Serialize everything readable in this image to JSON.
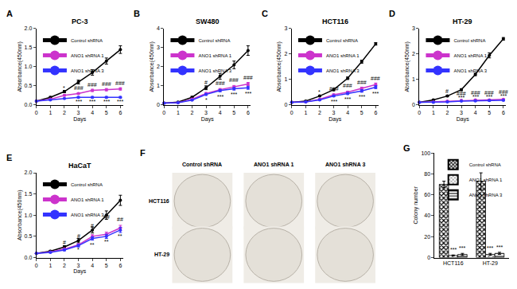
{
  "chart_data": [
    {
      "type": "line",
      "panel": "A",
      "title": "PC-3",
      "x_label": "Days",
      "y_label": "Absorbance(450nm)",
      "x": [
        0,
        1,
        2,
        3,
        4,
        5,
        6
      ],
      "xlim": [
        0,
        6.2
      ],
      "xticks": [
        0,
        1,
        2,
        3,
        4,
        5,
        6
      ],
      "ylim": [
        0,
        2
      ],
      "yticks": [
        {
          "value": 0,
          "label": "0.0"
        },
        0.5,
        {
          "value": 1,
          "label": "1.0"
        },
        1.5,
        {
          "value": 2,
          "label": "2.0"
        }
      ],
      "grid": false,
      "legend": "upper left",
      "marker": "circle",
      "series": [
        {
          "name": "Control shRNA",
          "color": "#000000",
          "values": [
            0.1,
            0.2,
            0.35,
            0.6,
            0.85,
            1.15,
            1.45
          ],
          "errors": [
            0.01,
            0.02,
            0.03,
            0.05,
            0.07,
            0.08,
            0.1
          ]
        },
        {
          "name": "ANO1 shRNA 1",
          "color": "#cc33cc",
          "values": [
            0.1,
            0.15,
            0.25,
            0.3,
            0.38,
            0.4,
            0.42
          ],
          "errors": [
            0.01,
            0.01,
            0.02,
            0.02,
            0.03,
            0.03,
            0.03
          ]
        },
        {
          "name": "ANO1 shRNA 3",
          "color": "#3333ff",
          "values": [
            0.1,
            0.13,
            0.17,
            0.2,
            0.2,
            0.2,
            0.2
          ],
          "errors": [
            0.01,
            0.01,
            0.01,
            0.02,
            0.02,
            0.02,
            0.02
          ]
        }
      ],
      "annotations": [
        {
          "x": 2,
          "y": 0.45,
          "text": "*"
        },
        {
          "x": 3,
          "y": 0.45,
          "text": "###"
        },
        {
          "x": 4,
          "y": 0.52,
          "text": "###"
        },
        {
          "x": 5,
          "y": 0.55,
          "text": "###"
        },
        {
          "x": 6,
          "y": 0.57,
          "text": "###"
        },
        {
          "x": 3,
          "y": 0.08,
          "text": "***"
        },
        {
          "x": 4,
          "y": 0.08,
          "text": "***"
        },
        {
          "x": 5,
          "y": 0.08,
          "text": "***"
        },
        {
          "x": 6,
          "y": 0.08,
          "text": "***"
        }
      ]
    },
    {
      "type": "line",
      "panel": "B",
      "title": "SW480",
      "x_label": "Days",
      "y_label": "Absorbance(450nm)",
      "x": [
        0,
        1,
        2,
        3,
        4,
        5,
        6
      ],
      "xlim": [
        0,
        6.2
      ],
      "xticks": [
        0,
        1,
        2,
        3,
        4,
        5,
        6
      ],
      "ylim": [
        0,
        4
      ],
      "yticks": [
        0,
        1,
        2,
        3,
        4
      ],
      "grid": false,
      "legend": "upper left",
      "marker": "circle",
      "series": [
        {
          "name": "Control shRNA",
          "color": "#000000",
          "values": [
            0.1,
            0.15,
            0.4,
            0.9,
            1.5,
            2.1,
            2.85
          ],
          "errors": [
            0.02,
            0.03,
            0.05,
            0.1,
            0.15,
            0.2,
            0.25
          ]
        },
        {
          "name": "ANO1 shRNA 1",
          "color": "#cc33cc",
          "values": [
            0.1,
            0.12,
            0.3,
            0.6,
            0.8,
            0.95,
            1.1
          ],
          "errors": [
            0.02,
            0.02,
            0.03,
            0.05,
            0.06,
            0.07,
            0.08
          ]
        },
        {
          "name": "ANO1 shRNA 3",
          "color": "#3333ff",
          "values": [
            0.1,
            0.12,
            0.25,
            0.55,
            0.75,
            0.85,
            0.9
          ],
          "errors": [
            0.02,
            0.02,
            0.03,
            0.05,
            0.06,
            0.07,
            0.08
          ]
        }
      ],
      "annotations": [
        {
          "x": 3,
          "y": 1.2,
          "text": "#"
        },
        {
          "x": 3,
          "y": 0.25,
          "text": "*"
        },
        {
          "x": 4,
          "y": 1.15,
          "text": "###"
        },
        {
          "x": 5,
          "y": 1.3,
          "text": "###"
        },
        {
          "x": 6,
          "y": 1.45,
          "text": "###"
        },
        {
          "x": 4,
          "y": 0.45,
          "text": "***"
        },
        {
          "x": 5,
          "y": 0.55,
          "text": "***"
        },
        {
          "x": 6,
          "y": 0.6,
          "text": "***"
        }
      ]
    },
    {
      "type": "line",
      "panel": "C",
      "title": "HCT116",
      "x_label": "Days",
      "y_label": "Absorbance(450nm)",
      "x": [
        0,
        1,
        2,
        3,
        4,
        5,
        6
      ],
      "xlim": [
        0,
        6.2
      ],
      "xticks": [
        0,
        1,
        2,
        3,
        4,
        5,
        6
      ],
      "ylim": [
        0,
        3
      ],
      "yticks": [
        0,
        1,
        2,
        3
      ],
      "grid": false,
      "legend": "upper left",
      "marker": "circle",
      "series": [
        {
          "name": "Control shRNA",
          "color": "#000000",
          "values": [
            0.1,
            0.15,
            0.35,
            0.6,
            1.05,
            1.7,
            2.4
          ],
          "errors": [
            0.01,
            0.02,
            0.03,
            0.04,
            0.05,
            0.06,
            0.05
          ]
        },
        {
          "name": "ANO1 shRNA 1",
          "color": "#cc33cc",
          "values": [
            0.1,
            0.12,
            0.22,
            0.4,
            0.5,
            0.65,
            0.8
          ],
          "errors": [
            0.01,
            0.01,
            0.02,
            0.03,
            0.04,
            0.05,
            0.06
          ]
        },
        {
          "name": "ANO1 shRNA 3",
          "color": "#3333ff",
          "values": [
            0.1,
            0.12,
            0.2,
            0.35,
            0.45,
            0.55,
            0.7
          ],
          "errors": [
            0.01,
            0.01,
            0.02,
            0.03,
            0.04,
            0.05,
            0.06
          ]
        }
      ],
      "annotations": [
        {
          "x": 2,
          "y": 0.5,
          "text": "*"
        },
        {
          "x": 3,
          "y": 0.65,
          "text": "###"
        },
        {
          "x": 4,
          "y": 0.75,
          "text": "###"
        },
        {
          "x": 5,
          "y": 0.9,
          "text": "###"
        },
        {
          "x": 6,
          "y": 1.05,
          "text": "###"
        },
        {
          "x": 3,
          "y": 0.12,
          "text": "***"
        },
        {
          "x": 4,
          "y": 0.22,
          "text": "***"
        },
        {
          "x": 5,
          "y": 0.32,
          "text": "***"
        },
        {
          "x": 6,
          "y": 0.45,
          "text": "***"
        }
      ]
    },
    {
      "type": "line",
      "panel": "D",
      "title": "HT-29",
      "x_label": "Days",
      "y_label": "Absorbance(450nm)",
      "x": [
        0,
        1,
        2,
        3,
        4,
        5,
        6
      ],
      "xlim": [
        0,
        6.2
      ],
      "xticks": [
        0,
        1,
        2,
        3,
        4,
        5,
        6
      ],
      "ylim": [
        0,
        3
      ],
      "yticks": [
        0,
        1,
        2,
        3
      ],
      "grid": false,
      "legend": "upper left",
      "marker": "circle",
      "series": [
        {
          "name": "Control shRNA",
          "color": "#000000",
          "values": [
            0.1,
            0.2,
            0.35,
            0.6,
            1.2,
            1.95,
            2.6
          ],
          "errors": [
            0.01,
            0.02,
            0.03,
            0.04,
            0.05,
            0.1,
            0.05
          ]
        },
        {
          "name": "ANO1 shRNA 1",
          "color": "#cc33cc",
          "values": [
            0.1,
            0.12,
            0.15,
            0.18,
            0.2,
            0.2,
            0.22
          ],
          "errors": [
            0.01,
            0.01,
            0.01,
            0.02,
            0.02,
            0.02,
            0.02
          ]
        },
        {
          "name": "ANO1 shRNA 3",
          "color": "#3333ff",
          "values": [
            0.1,
            0.1,
            0.12,
            0.15,
            0.16,
            0.17,
            0.18
          ],
          "errors": [
            0.01,
            0.01,
            0.01,
            0.01,
            0.02,
            0.02,
            0.02
          ]
        }
      ],
      "annotations": [
        {
          "x": 2,
          "y": 0.55,
          "text": "#"
        },
        {
          "x": 3,
          "y": 0.45,
          "text": "###"
        },
        {
          "x": 4,
          "y": 0.47,
          "text": "###"
        },
        {
          "x": 5,
          "y": 0.47,
          "text": "###"
        },
        {
          "x": 6,
          "y": 0.5,
          "text": "###"
        },
        {
          "x": 3,
          "y": 0.3,
          "text": "***"
        },
        {
          "x": 4,
          "y": 0.32,
          "text": "***"
        },
        {
          "x": 5,
          "y": 0.32,
          "text": "***"
        },
        {
          "x": 6,
          "y": 0.35,
          "text": "***"
        }
      ]
    },
    {
      "type": "line",
      "panel": "E",
      "title": "HaCaT",
      "x_label": "Days",
      "y_label": "Absorbance(450nm)",
      "x": [
        0,
        1,
        2,
        3,
        4,
        5,
        6
      ],
      "xlim": [
        0,
        6.2
      ],
      "xticks": [
        0,
        1,
        2,
        3,
        4,
        5,
        6
      ],
      "ylim": [
        0,
        2
      ],
      "yticks": [
        {
          "value": 0,
          "label": "0.0"
        },
        0.5,
        {
          "value": 1,
          "label": "1.0"
        },
        1.5,
        {
          "value": 2,
          "label": "2.0"
        }
      ],
      "grid": false,
      "legend": "upper left",
      "marker": "circle",
      "series": [
        {
          "name": "Control shRNA",
          "color": "#000000",
          "values": [
            0.1,
            0.15,
            0.25,
            0.4,
            0.65,
            1.0,
            1.35
          ],
          "errors": [
            0.01,
            0.02,
            0.03,
            0.05,
            0.07,
            0.1,
            0.12
          ]
        },
        {
          "name": "ANO1 shRNA 1",
          "color": "#cc33cc",
          "values": [
            0.1,
            0.13,
            0.2,
            0.3,
            0.5,
            0.55,
            0.7
          ],
          "errors": [
            0.01,
            0.01,
            0.02,
            0.03,
            0.04,
            0.05,
            0.06
          ]
        },
        {
          "name": "ANO1 shRNA 3",
          "color": "#3333ff",
          "values": [
            0.1,
            0.12,
            0.18,
            0.28,
            0.45,
            0.5,
            0.65
          ],
          "errors": [
            0.01,
            0.01,
            0.02,
            0.03,
            0.04,
            0.05,
            0.06
          ]
        }
      ],
      "annotations": [
        {
          "x": 2,
          "y": 0.35,
          "text": "#"
        },
        {
          "x": 3,
          "y": 0.5,
          "text": "#"
        },
        {
          "x": 4,
          "y": 0.75,
          "text": "#"
        },
        {
          "x": 5,
          "y": 0.95,
          "text": "##"
        },
        {
          "x": 6,
          "y": 0.9,
          "text": "##"
        },
        {
          "x": 3,
          "y": 0.18,
          "text": "*"
        },
        {
          "x": 4,
          "y": 0.3,
          "text": "**"
        },
        {
          "x": 5,
          "y": 0.38,
          "text": "**"
        },
        {
          "x": 6,
          "y": 0.5,
          "text": "**"
        }
      ]
    },
    {
      "type": "image_grid",
      "panel": "F",
      "column_labels": [
        "Control shRNA",
        "ANO1 shRNA 1",
        "ANO1 shRNA 3"
      ],
      "row_labels": [
        "HCT116",
        "HT-29"
      ]
    },
    {
      "type": "bar",
      "panel": "G",
      "y_label": "Colony number",
      "categories": [
        "HCT116",
        "HT-29"
      ],
      "ylim": [
        0,
        100
      ],
      "yticks": [
        0,
        20,
        40,
        60,
        80,
        100
      ],
      "grid": false,
      "legend": "upper left",
      "series": [
        {
          "name": "Control shRNA",
          "color": "#000000",
          "values": [
            70,
            73
          ],
          "errors": [
            3,
            8
          ]
        },
        {
          "name": "ANO1 shRNA 1",
          "color": "#000000",
          "values": [
            2,
            3
          ],
          "errors": [
            0.5,
            1
          ]
        },
        {
          "name": "ANO1 shRNA 3",
          "color": "#000000",
          "values": [
            3,
            4
          ],
          "errors": [
            1,
            1
          ]
        }
      ],
      "annotations": [
        {
          "x": "HCT116",
          "series": "ANO1 shRNA 1",
          "text": "***"
        },
        {
          "x": "HCT116",
          "series": "ANO1 shRNA 3",
          "text": "***"
        },
        {
          "x": "HT-29",
          "series": "ANO1 shRNA 1",
          "text": "***"
        },
        {
          "x": "HT-29",
          "series": "ANO1 shRNA 3",
          "text": "***"
        }
      ]
    }
  ]
}
